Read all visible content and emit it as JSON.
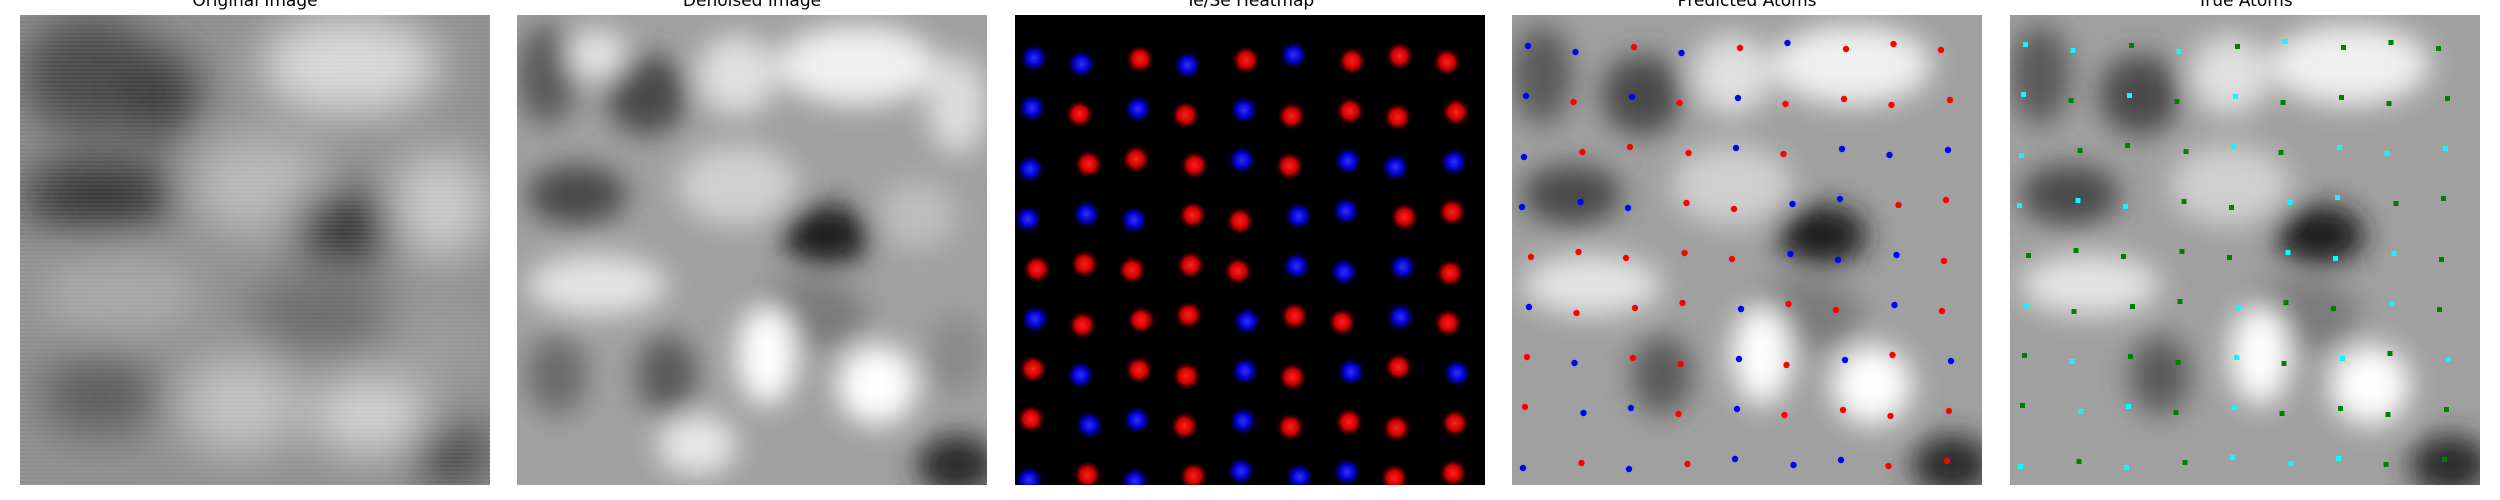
{
  "panels": [
    {
      "title": "Original Image"
    },
    {
      "title": "Denoised Image"
    },
    {
      "title": "Te/Se Heatmap"
    },
    {
      "title": "Predicted Atoms"
    },
    {
      "title": "True Atoms"
    }
  ],
  "legend_colors": {
    "predicted_te": "#ff0000",
    "predicted_se": "#0000ff",
    "true_te": "#00ffff",
    "true_se": "#008000",
    "heatmap_background": "#000000"
  }
}
